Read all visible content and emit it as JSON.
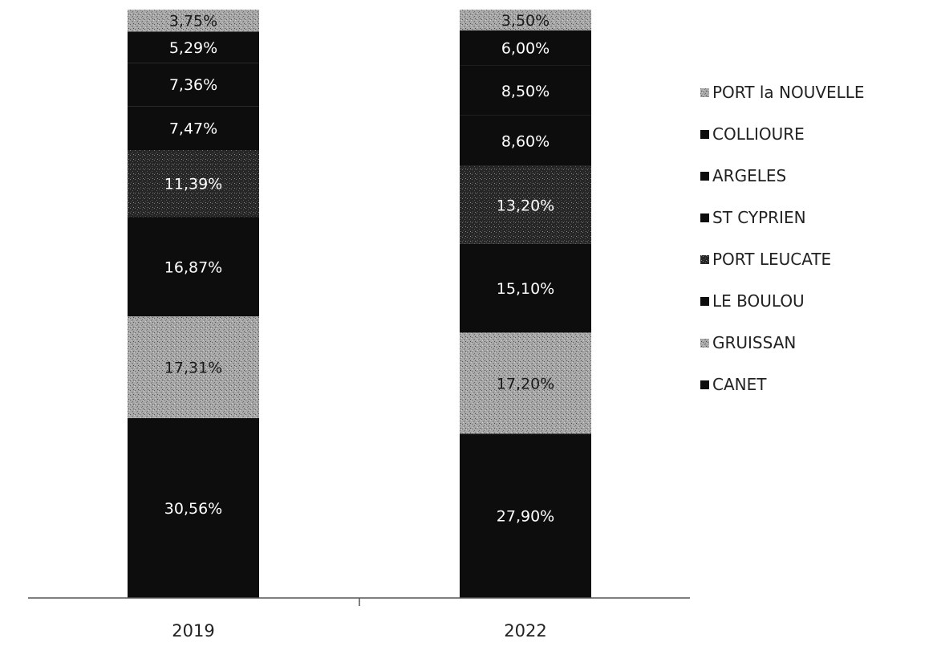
{
  "chart_data": {
    "type": "bar",
    "stacked": true,
    "categories": [
      "2019",
      "2022"
    ],
    "series": [
      {
        "name": "CANET",
        "values": [
          30.56,
          27.9
        ],
        "labels": [
          "30,56%",
          "27,90%"
        ],
        "color": "#0d0d0d",
        "pattern": false
      },
      {
        "name": "GRUISSAN",
        "values": [
          17.31,
          17.2
        ],
        "labels": [
          "17,31%",
          "17,20%"
        ],
        "color": "#9a9a9a",
        "pattern": true
      },
      {
        "name": "LE BOULOU",
        "values": [
          16.87,
          15.1
        ],
        "labels": [
          "16,87%",
          "15,10%"
        ],
        "color": "#0d0d0d",
        "pattern": false
      },
      {
        "name": "PORT LEUCATE",
        "values": [
          11.39,
          13.2
        ],
        "labels": [
          "11,39%",
          "13,20%"
        ],
        "color": "#3a3a3a",
        "pattern": true
      },
      {
        "name": "ST CYPRIEN",
        "values": [
          7.47,
          8.6
        ],
        "labels": [
          "7,47%",
          "8,60%"
        ],
        "color": "#0d0d0d",
        "pattern": false
      },
      {
        "name": "ARGELES",
        "values": [
          7.36,
          8.5
        ],
        "labels": [
          "7,36%",
          "8,50%"
        ],
        "color": "#0d0d0d",
        "pattern": false
      },
      {
        "name": "COLLIOURE",
        "values": [
          5.29,
          6.0
        ],
        "labels": [
          "5,29%",
          "6,00%"
        ],
        "color": "#0d0d0d",
        "pattern": false
      },
      {
        "name": "PORT la NOUVELLE",
        "values": [
          3.75,
          3.5
        ],
        "labels": [
          "3,75%",
          "3,50%"
        ],
        "color": "#8c8c8c",
        "pattern": true
      }
    ],
    "legend_order": [
      "PORT la NOUVELLE",
      "COLLIOURE",
      "ARGELES",
      "ST CYPRIEN",
      "PORT LEUCATE",
      "LE BOULOU",
      "GRUISSAN",
      "CANET"
    ],
    "legend_position": "right",
    "ylim": [
      0,
      100
    ],
    "grid": false,
    "title": "",
    "xlabel": "",
    "ylabel": ""
  }
}
